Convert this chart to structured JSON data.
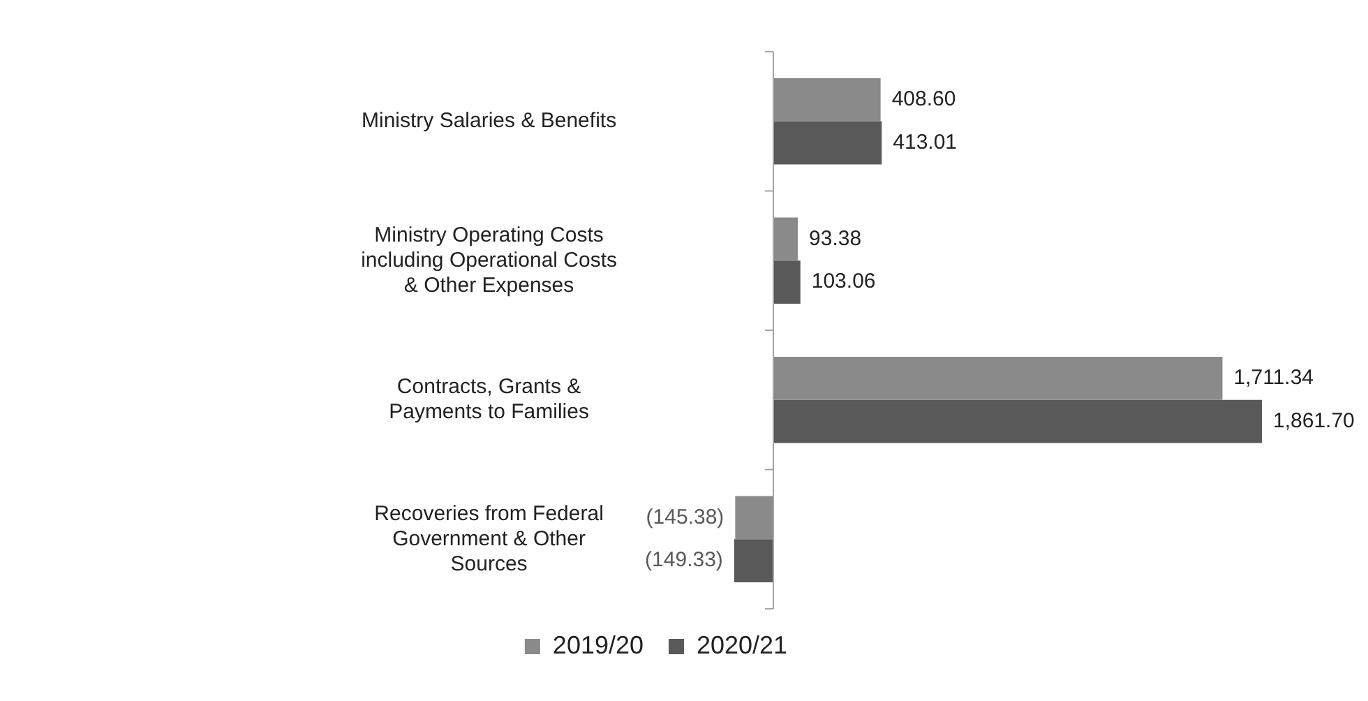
{
  "chart_data": {
    "type": "bar",
    "orientation": "horizontal",
    "categories": [
      "Ministry Salaries & Benefits",
      "Ministry Operating Costs including Operational Costs & Other Expenses",
      "Contracts, Grants & Payments to Families",
      "Recoveries from Federal Government & Other Sources"
    ],
    "series": [
      {
        "name": "2019/20",
        "color": "#8a8a8a",
        "values": [
          408.6,
          93.38,
          1711.34,
          -145.38
        ],
        "value_labels": [
          "408.60",
          "93.38",
          "1,711.34",
          "(145.38)"
        ]
      },
      {
        "name": "2020/21",
        "color": "#595959",
        "values": [
          413.01,
          103.06,
          1861.7,
          -149.33
        ],
        "value_labels": [
          "413.01",
          "103.06",
          "1,861.70",
          "(149.33)"
        ]
      }
    ],
    "legend": "bottom",
    "grid": false
  }
}
